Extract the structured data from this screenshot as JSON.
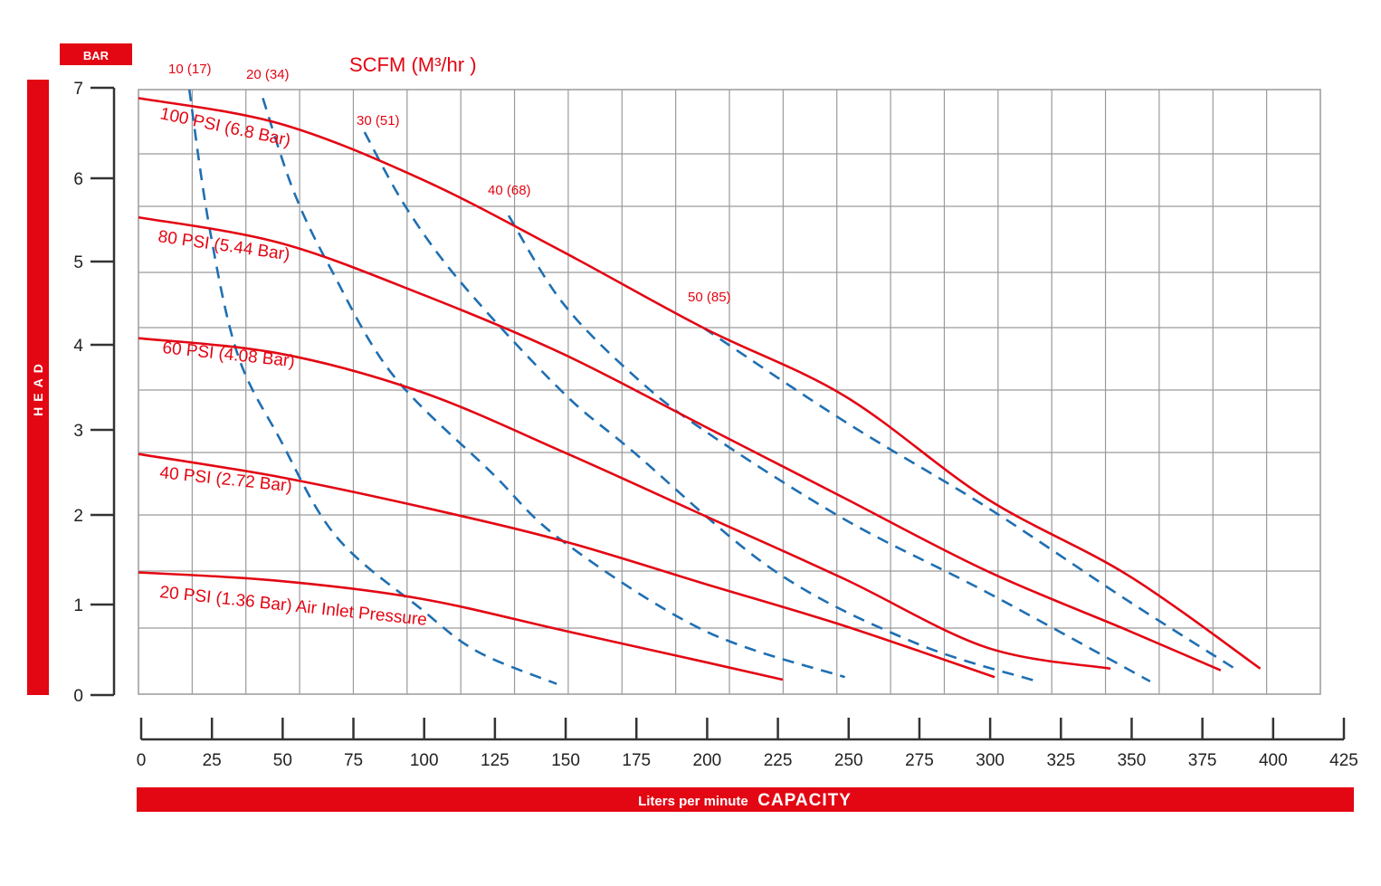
{
  "chart_data": {
    "type": "line",
    "units_tag": "BAR",
    "ylabel": "HEAD",
    "xlabel_prefix": "Liters per minute",
    "xlabel_main": "CAPACITY",
    "scfm_header": "SCFM (M³/hr )",
    "xlim": [
      0,
      425
    ],
    "ylim": [
      0,
      7
    ],
    "x_ticks": [
      0,
      25,
      50,
      75,
      100,
      125,
      150,
      175,
      200,
      225,
      250,
      275,
      300,
      325,
      350,
      375,
      400,
      425
    ],
    "y_ticks": [
      0,
      1,
      2,
      3,
      4,
      5,
      6,
      7
    ],
    "grid": true,
    "colors": {
      "pressure": "#e30613",
      "air": "#1f6fb2",
      "band": "#e30613",
      "grid": "#9a9a9a"
    },
    "pressure_curves": [
      {
        "name": "100 PSI (6.8 Bar)",
        "points": [
          [
            0,
            7.0
          ],
          [
            50,
            6.7
          ],
          [
            100,
            6.05
          ],
          [
            150,
            5.2
          ],
          [
            200,
            4.3
          ],
          [
            250,
            3.5
          ],
          [
            300,
            2.3
          ],
          [
            350,
            1.4
          ],
          [
            397,
            0.3
          ]
        ]
      },
      {
        "name": "80 PSI (5.44 Bar)",
        "points": [
          [
            0,
            5.6
          ],
          [
            50,
            5.3
          ],
          [
            100,
            4.7
          ],
          [
            150,
            4.0
          ],
          [
            200,
            3.15
          ],
          [
            250,
            2.3
          ],
          [
            300,
            1.45
          ],
          [
            350,
            0.75
          ],
          [
            383,
            0.28
          ]
        ]
      },
      {
        "name": "60 PSI (4.08 Bar)",
        "points": [
          [
            0,
            4.18
          ],
          [
            50,
            4.0
          ],
          [
            100,
            3.55
          ],
          [
            150,
            2.85
          ],
          [
            200,
            2.1
          ],
          [
            250,
            1.35
          ],
          [
            300,
            0.55
          ],
          [
            344,
            0.3
          ]
        ]
      },
      {
        "name": "40 PSI (2.72 Bar)",
        "points": [
          [
            0,
            2.82
          ],
          [
            50,
            2.55
          ],
          [
            100,
            2.2
          ],
          [
            150,
            1.8
          ],
          [
            200,
            1.3
          ],
          [
            250,
            0.8
          ],
          [
            303,
            0.2
          ]
        ]
      },
      {
        "name": "20 PSI (1.36 Bar) Air Inlet Pressure",
        "points": [
          [
            0,
            1.43
          ],
          [
            50,
            1.33
          ],
          [
            100,
            1.12
          ],
          [
            150,
            0.75
          ],
          [
            200,
            0.38
          ],
          [
            228,
            0.17
          ]
        ]
      }
    ],
    "air_curves": [
      {
        "label": "10 (17)",
        "points": [
          [
            18,
            7.1
          ],
          [
            25,
            5.5
          ],
          [
            35,
            4.0
          ],
          [
            50,
            3.0
          ],
          [
            70,
            1.85
          ],
          [
            100,
            1.0
          ],
          [
            120,
            0.5
          ],
          [
            148,
            0.12
          ]
        ]
      },
      {
        "name": "20 (34)",
        "label": "20 (34)",
        "points": [
          [
            44,
            7.0
          ],
          [
            55,
            5.9
          ],
          [
            68,
            5.0
          ],
          [
            90,
            3.75
          ],
          [
            125,
            2.6
          ],
          [
            150,
            1.8
          ],
          [
            200,
            0.75
          ],
          [
            250,
            0.2
          ]
        ]
      },
      {
        "label": "30 (51)",
        "points": [
          [
            80,
            6.6
          ],
          [
            95,
            5.7
          ],
          [
            115,
            4.8
          ],
          [
            150,
            3.55
          ],
          [
            175,
            2.85
          ],
          [
            225,
            1.45
          ],
          [
            275,
            0.6
          ],
          [
            318,
            0.15
          ]
        ]
      },
      {
        "label": "40 (68)",
        "points": [
          [
            131,
            5.62
          ],
          [
            150,
            4.6
          ],
          [
            175,
            3.75
          ],
          [
            200,
            3.1
          ],
          [
            250,
            2.05
          ],
          [
            300,
            1.2
          ],
          [
            358,
            0.15
          ]
        ]
      },
      {
        "label": "50 (85)",
        "points": [
          [
            200,
            4.3
          ],
          [
            250,
            3.2
          ],
          [
            300,
            2.2
          ],
          [
            350,
            1.1
          ],
          [
            388,
            0.3
          ]
        ]
      }
    ]
  }
}
